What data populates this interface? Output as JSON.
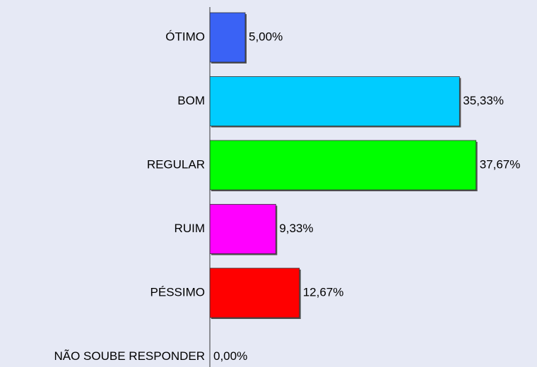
{
  "chart_data": {
    "type": "bar",
    "orientation": "horizontal",
    "categories": [
      "ÓTIMO",
      "BOM",
      "REGULAR",
      "RUIM",
      "PÉSSIMO",
      "NÃO SOUBE RESPONDER"
    ],
    "values": [
      5.0,
      35.33,
      37.67,
      9.33,
      12.67,
      0.0
    ],
    "value_labels": [
      "5,00%",
      "35,33%",
      "37,67%",
      "9,33%",
      "12,67%",
      "0,00%"
    ],
    "colors": [
      "#3a62f5",
      "#00ccff",
      "#00ff00",
      "#ff00ff",
      "#ff0000",
      "#888888"
    ],
    "xlim": [
      0,
      46
    ]
  }
}
